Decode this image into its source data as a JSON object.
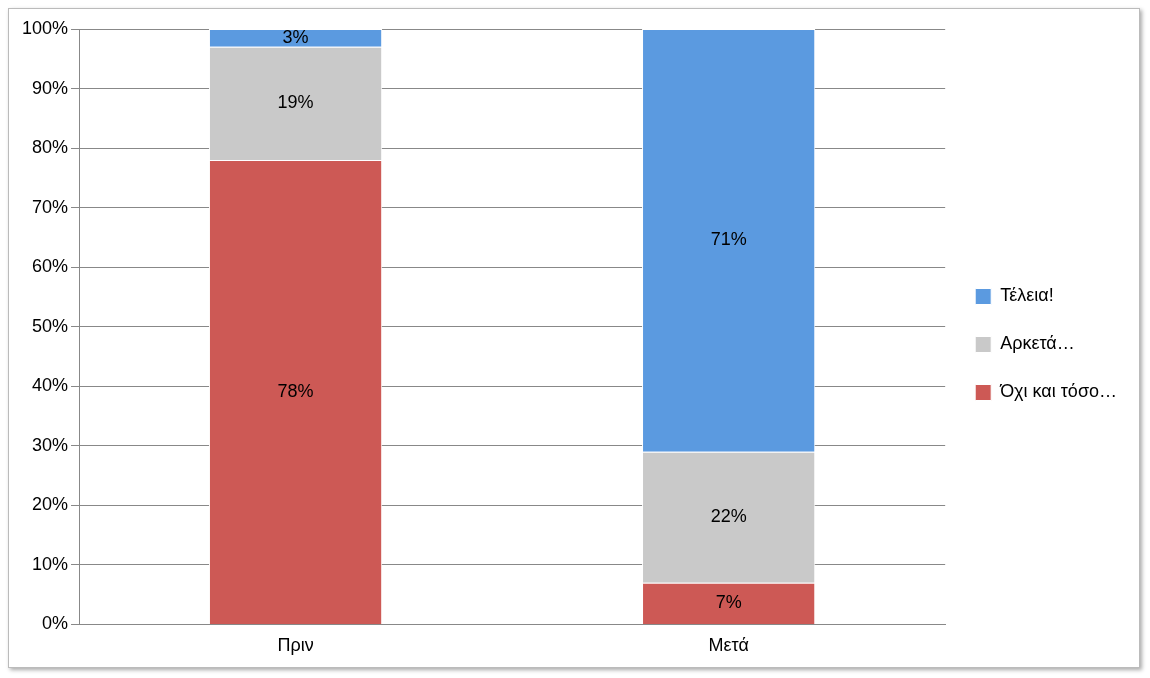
{
  "chart_data": {
    "type": "bar",
    "stacked": true,
    "categories": [
      "Πριν",
      "Μετά"
    ],
    "series": [
      {
        "name": "Όχι και τόσο…",
        "color": "#cd5955",
        "values": [
          78,
          7
        ],
        "value_labels": [
          "78%",
          "7%"
        ]
      },
      {
        "name": "Αρκετά…",
        "color": "#c9c9c9",
        "values": [
          19,
          22
        ],
        "value_labels": [
          "19%",
          "22%"
        ]
      },
      {
        "name": "Τέλεια!",
        "color": "#5b9ae0",
        "values": [
          3,
          71
        ],
        "value_labels": [
          "3%",
          "71%"
        ]
      }
    ],
    "ylim": [
      0,
      100
    ],
    "yticks": [
      {
        "value": 0,
        "label": "0%"
      },
      {
        "value": 10,
        "label": "10%"
      },
      {
        "value": 20,
        "label": "20%"
      },
      {
        "value": 30,
        "label": "30%"
      },
      {
        "value": 40,
        "label": "40%"
      },
      {
        "value": 50,
        "label": "50%"
      },
      {
        "value": 60,
        "label": "60%"
      },
      {
        "value": 70,
        "label": "70%"
      },
      {
        "value": 80,
        "label": "80%"
      },
      {
        "value": 90,
        "label": "90%"
      },
      {
        "value": 100,
        "label": "100%"
      }
    ],
    "grid": "y",
    "legend": "right"
  }
}
